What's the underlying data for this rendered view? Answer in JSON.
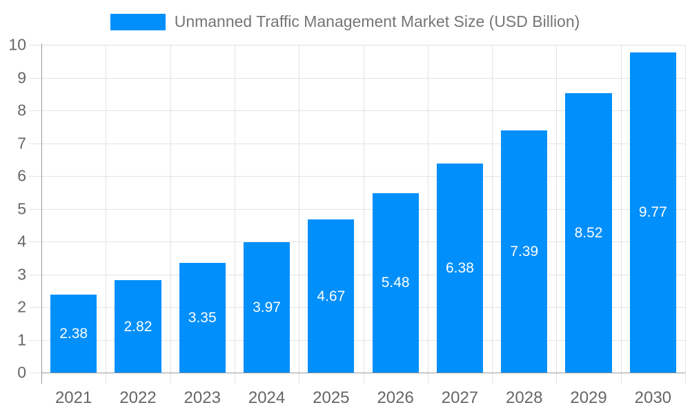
{
  "chart_data": {
    "type": "bar",
    "title": "Unmanned Traffic Management Market Size (USD Billion)",
    "categories": [
      "2021",
      "2022",
      "2023",
      "2024",
      "2025",
      "2026",
      "2027",
      "2028",
      "2029",
      "2030"
    ],
    "values": [
      2.38,
      2.82,
      3.35,
      3.97,
      4.67,
      5.48,
      6.38,
      7.39,
      8.52,
      9.77
    ],
    "xlabel": "",
    "ylabel": "",
    "ylim": [
      0,
      10
    ],
    "ytick_step": 1,
    "yticks": [
      0,
      1,
      2,
      3,
      4,
      5,
      6,
      7,
      8,
      9,
      10
    ],
    "grid": true,
    "legend_position": "top",
    "bar_width_ratio": 0.72,
    "value_label_decimals": 2,
    "value_labels_inside_bars": true,
    "colors": {
      "bar": "#008FFB",
      "bar_value_label": "#FFFFFF",
      "axis_line": "#9A9A9A",
      "gridline": "#E3E3E3",
      "tick_label": "#666666",
      "legend_text": "#757575",
      "background": "#FFFFFF"
    }
  }
}
